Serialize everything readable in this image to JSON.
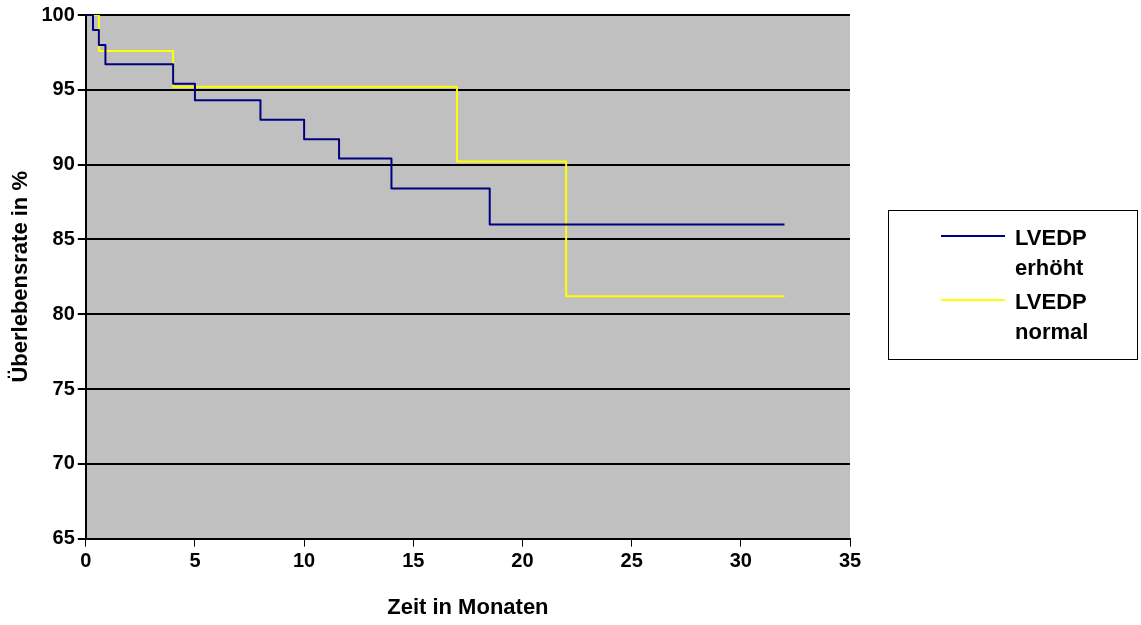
{
  "chart_data": {
    "type": "step",
    "xlabel": "Zeit in Monaten",
    "ylabel": "Überlebensrate in %",
    "xlim": [
      0,
      35
    ],
    "xticks": [
      0,
      5,
      10,
      15,
      20,
      25,
      30,
      35
    ],
    "ylim": [
      65,
      100
    ],
    "yticks": [
      65,
      70,
      75,
      80,
      85,
      90,
      95,
      100
    ],
    "grid": "y",
    "legend": "right",
    "marker": "none",
    "line_style": "solid",
    "series": [
      {
        "name": "LVEDP erhöht",
        "color": "#000080",
        "x": [
          0,
          0.33,
          0.6,
          0.9,
          4,
          5,
          8,
          10,
          11.6,
          14,
          18.5,
          32
        ],
        "values": [
          100,
          99,
          98,
          96.7,
          95.4,
          94.3,
          93,
          91.7,
          90.4,
          88.4,
          86,
          86
        ]
      },
      {
        "name": "LVEDP normal",
        "color": "#ffff00",
        "x": [
          0,
          0.6,
          4,
          17,
          22,
          32
        ],
        "values": [
          100,
          97.6,
          95.2,
          90.2,
          81.2,
          81.2
        ]
      }
    ]
  }
}
